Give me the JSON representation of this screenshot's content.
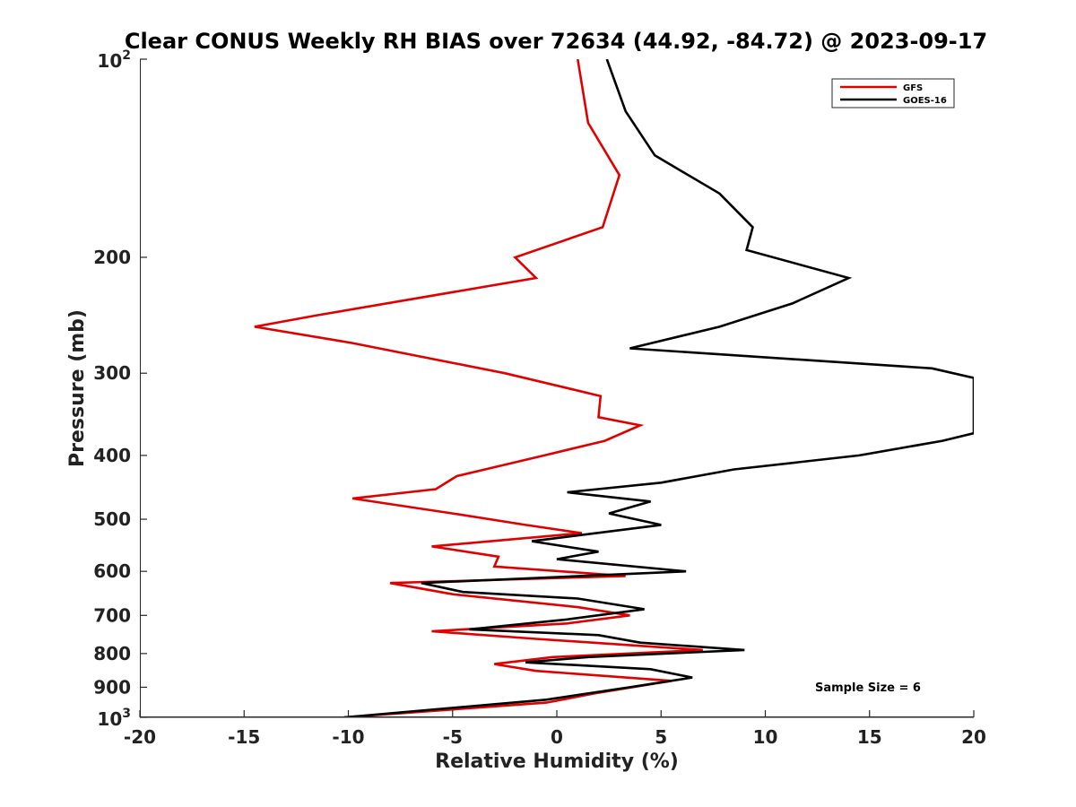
{
  "chart_data": {
    "type": "line",
    "title": "Clear CONUS Weekly RH BIAS over 72634 (44.92, -84.72) @ 2023-09-17",
    "xlabel": "Relative Humidity (%)",
    "ylabel": "Pressure (mb)",
    "xlim": [
      -20,
      20
    ],
    "ylim": [
      100,
      1000
    ],
    "yscale": "log",
    "yreversed": true,
    "xticks": [
      -20,
      -15,
      -10,
      -5,
      0,
      5,
      10,
      15,
      20
    ],
    "xtick_labels": [
      "-20",
      "-15",
      "-10",
      "-5",
      "0",
      "5",
      "10",
      "15",
      "20"
    ],
    "yticks": [
      {
        "value": 100,
        "base": "10",
        "exp": "2"
      },
      {
        "value": 200,
        "label": "200"
      },
      {
        "value": 300,
        "label": "300"
      },
      {
        "value": 400,
        "label": "400"
      },
      {
        "value": 500,
        "label": "500"
      },
      {
        "value": 600,
        "label": "600"
      },
      {
        "value": 700,
        "label": "700"
      },
      {
        "value": 800,
        "label": "800"
      },
      {
        "value": 900,
        "label": "900"
      },
      {
        "value": 1000,
        "base": "10",
        "exp": "3"
      }
    ],
    "legend_position": "top-right",
    "annotation": "Sample Size = 6",
    "series": [
      {
        "name": "GFS",
        "color": "#e00000",
        "points": [
          [
            1.0,
            100
          ],
          [
            1.5,
            125
          ],
          [
            3.0,
            150
          ],
          [
            2.2,
            180
          ],
          [
            -2.0,
            200
          ],
          [
            -1.0,
            215
          ],
          [
            -11.5,
            245
          ],
          [
            -14.5,
            255
          ],
          [
            -9.8,
            270
          ],
          [
            -2.5,
            300
          ],
          [
            2.1,
            325
          ],
          [
            2.0,
            350
          ],
          [
            4.0,
            360
          ],
          [
            2.3,
            380
          ],
          [
            -0.6,
            400
          ],
          [
            -4.8,
            430
          ],
          [
            -5.8,
            450
          ],
          [
            -9.8,
            465
          ],
          [
            -5.0,
            490
          ],
          [
            -1.5,
            510
          ],
          [
            1.2,
            525
          ],
          [
            -6.0,
            550
          ],
          [
            -2.8,
            570
          ],
          [
            -3.0,
            590
          ],
          [
            3.3,
            610
          ],
          [
            -8.0,
            625
          ],
          [
            -5.0,
            650
          ],
          [
            1.0,
            680
          ],
          [
            3.5,
            700
          ],
          [
            0.5,
            720
          ],
          [
            -6.0,
            740
          ],
          [
            -1.0,
            760
          ],
          [
            7.0,
            790
          ],
          [
            -0.2,
            810
          ],
          [
            -3.0,
            830
          ],
          [
            -1.0,
            850
          ],
          [
            5.5,
            880
          ],
          [
            1.8,
            920
          ],
          [
            -0.5,
            950
          ],
          [
            -10.2,
            1000
          ]
        ]
      },
      {
        "name": "GOES-16",
        "color": "#000000",
        "points": [
          [
            2.4,
            100
          ],
          [
            3.3,
            120
          ],
          [
            4.7,
            140
          ],
          [
            7.8,
            160
          ],
          [
            9.4,
            180
          ],
          [
            9.1,
            195
          ],
          [
            14.0,
            215
          ],
          [
            11.3,
            235
          ],
          [
            7.8,
            255
          ],
          [
            3.5,
            275
          ],
          [
            18.0,
            295
          ],
          [
            20.0,
            305
          ],
          [
            20.0,
            370
          ],
          [
            18.5,
            380
          ],
          [
            14.5,
            400
          ],
          [
            8.5,
            420
          ],
          [
            5.0,
            440
          ],
          [
            0.5,
            455
          ],
          [
            4.5,
            470
          ],
          [
            2.5,
            490
          ],
          [
            5.0,
            510
          ],
          [
            -1.2,
            540
          ],
          [
            2.0,
            560
          ],
          [
            0.0,
            575
          ],
          [
            6.2,
            600
          ],
          [
            -6.5,
            625
          ],
          [
            -4.5,
            645
          ],
          [
            1.0,
            660
          ],
          [
            4.2,
            685
          ],
          [
            0.5,
            710
          ],
          [
            -4.2,
            735
          ],
          [
            2.0,
            750
          ],
          [
            4.0,
            770
          ],
          [
            9.0,
            790
          ],
          [
            1.5,
            810
          ],
          [
            -1.5,
            825
          ],
          [
            4.5,
            845
          ],
          [
            6.5,
            870
          ],
          [
            3.5,
            900
          ],
          [
            -0.5,
            940
          ],
          [
            -10.2,
            1000
          ]
        ]
      }
    ]
  }
}
